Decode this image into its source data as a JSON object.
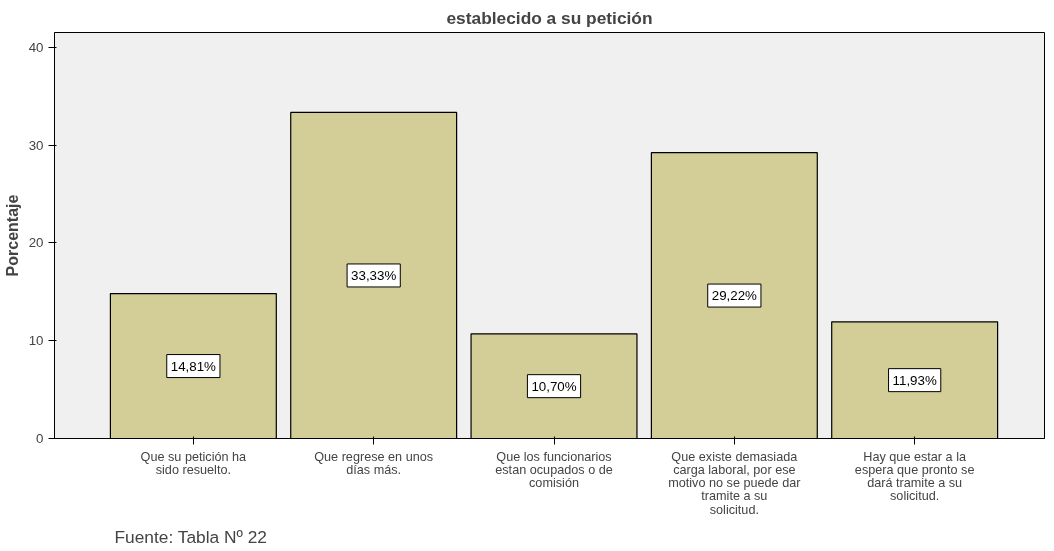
{
  "chart_data": {
    "type": "bar",
    "title": "establecido a su petición",
    "ylabel": "Porcentaje",
    "categories": [
      "Que su petición ha sido resuelto.",
      "Que regrese en unos días más.",
      "Que los funcionarios estan ocupados o de comisión",
      "Que existe demasiada carga laboral, por ese motivo no se puede dar tramite a su solicitud.",
      "Hay que estar a la espera que pronto se dará tramite a su solicitud."
    ],
    "values": [
      14.81,
      33.33,
      10.7,
      29.22,
      11.93
    ],
    "value_labels": [
      "14,81%",
      "33,33%",
      "10,70%",
      "29,22%",
      "11,93%"
    ],
    "color": "#d3ce97",
    "ylim": [
      0,
      41.5
    ],
    "yticks": [
      0,
      10,
      20,
      30,
      40
    ],
    "annotations": [
      "Fuente: Tabla Nº 22"
    ]
  }
}
